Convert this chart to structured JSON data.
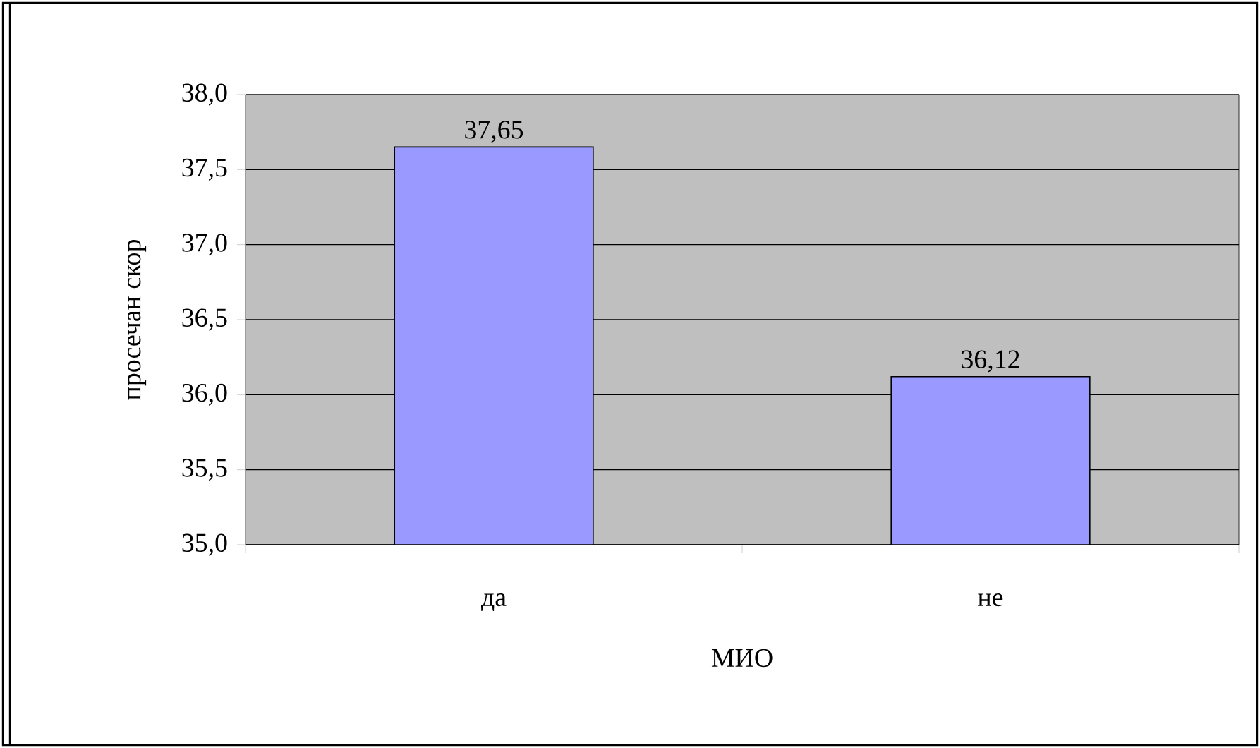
{
  "chart_data": {
    "type": "bar",
    "xlabel": "МИО",
    "ylabel": "просечан скор",
    "categories": [
      "да",
      "не"
    ],
    "values": [
      37.65,
      36.12
    ],
    "value_labels": [
      "37,65",
      "36,12"
    ],
    "color": "#9999ff",
    "ylim": [
      35.0,
      38.0
    ],
    "yticks": [
      {
        "value": 35.0,
        "label": "35,0"
      },
      {
        "value": 35.5,
        "label": "35,5"
      },
      {
        "value": 36.0,
        "label": "36,0"
      },
      {
        "value": 36.5,
        "label": "36,5"
      },
      {
        "value": 37.0,
        "label": "37,0"
      },
      {
        "value": 37.5,
        "label": "37,5"
      },
      {
        "value": 38.0,
        "label": "38,0"
      }
    ],
    "grid": "y"
  }
}
